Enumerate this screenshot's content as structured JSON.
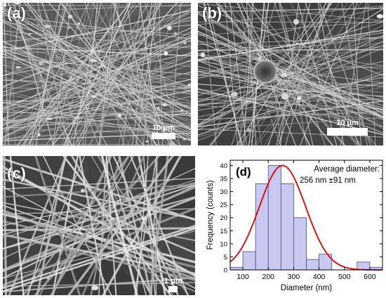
{
  "panels": [
    {
      "label": "(a)",
      "scale_label": "10 μm"
    },
    {
      "label": "(b)",
      "scale_label": "10 μm"
    },
    {
      "label": "(c)",
      "scale_label": "1 μm"
    },
    {
      "label": "(d)"
    }
  ],
  "chart_data": {
    "type": "bar",
    "subtype": "histogram",
    "panel_label": "(d)",
    "annotation_line1": "Average diameter:",
    "annotation_line2": "256 nm ±91 nm",
    "xlabel": "Diameter (nm)",
    "ylabel": "Frequency (counts)",
    "xlim": [
      50,
      650
    ],
    "ylim": [
      0,
      42
    ],
    "xticks": [
      100,
      200,
      300,
      400,
      500,
      600
    ],
    "yticks": [
      0,
      5,
      10,
      15,
      20,
      25,
      30,
      35,
      40
    ],
    "bin_edges": [
      50,
      100,
      150,
      200,
      250,
      300,
      350,
      400,
      450,
      500,
      550,
      600,
      650
    ],
    "values": [
      1,
      7,
      33,
      40,
      33,
      20,
      4,
      6,
      0,
      0,
      3,
      1
    ],
    "bar_color": "#c8c8f0",
    "edge_color": "#4a4a80",
    "fit": {
      "type": "gaussian",
      "mean": 256,
      "sd": 91,
      "peak": 40,
      "color": "#e00000"
    }
  }
}
